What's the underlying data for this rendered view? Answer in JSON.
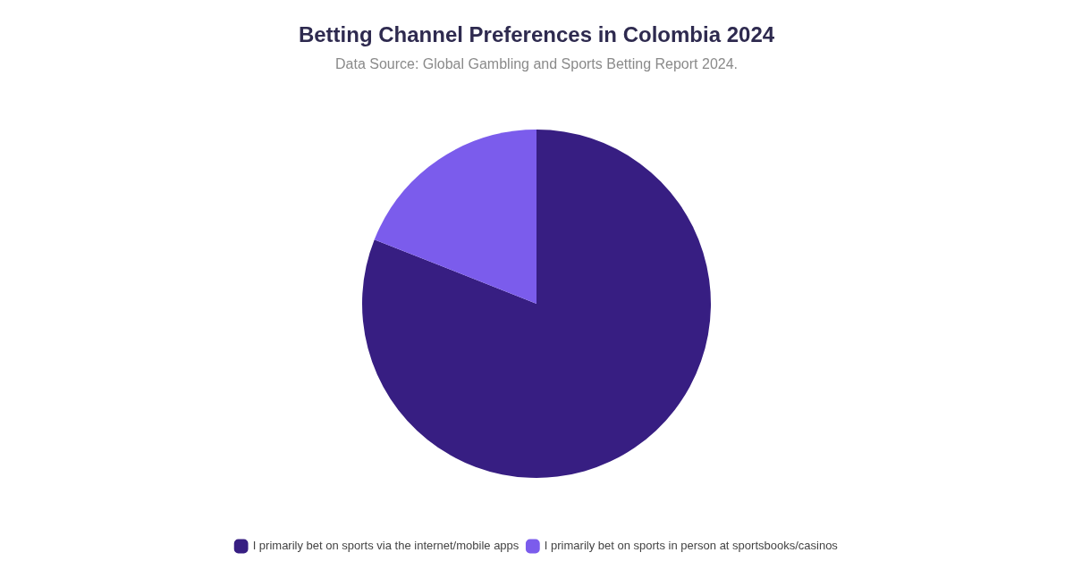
{
  "chart_data": {
    "type": "pie",
    "title": "Betting Channel Preferences in Colombia 2024",
    "subtitle": "Data Source: Global Gambling and Sports Betting Report 2024.",
    "categories": [
      "I primarily bet on sports via the internet/mobile apps",
      "I primarily bet on sports in person at sportsbooks/casinos"
    ],
    "values": [
      81,
      19
    ],
    "colors": [
      "#371e82",
      "#7b5cec"
    ],
    "legend": "bottom"
  }
}
